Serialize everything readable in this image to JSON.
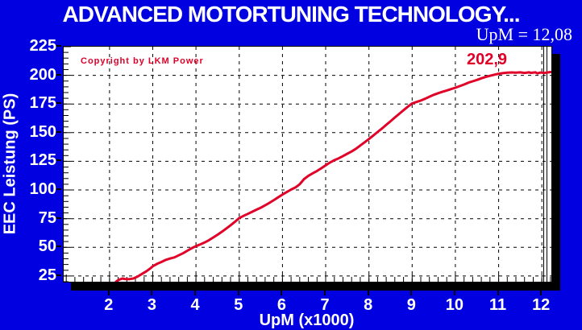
{
  "header": {
    "title": "ADVANCED MOTORTUNING TECHNOLOGY...",
    "rpm_readout": "UpM = 12,08"
  },
  "plot_annotations": {
    "copyright": "Copyright by LKM Power",
    "peak_value_label": "202,9"
  },
  "colors": {
    "background": "#0000e0",
    "text": "#ffffff",
    "accent_red": "#e00028",
    "grid": "#000000",
    "plot_background": "#ffffff"
  },
  "chart_data": {
    "type": "line",
    "title": "ADVANCED MOTORTUNING TECHNOLOGY...",
    "xlabel": "UpM (x1000)",
    "ylabel": "EEC Leistung (PS)",
    "xlim": [
      0.94,
      12.22
    ],
    "ylim": [
      20,
      225
    ],
    "xticks": [
      2,
      3,
      4,
      5,
      6,
      7,
      8,
      9,
      10,
      11,
      12
    ],
    "yticks": [
      225,
      200,
      175,
      150,
      125,
      100,
      75,
      50,
      25
    ],
    "x_minor_step": 0.2,
    "y_minor_step": 5,
    "grid": "dashed",
    "legend": "none",
    "cursor_upm": 12.08,
    "peak_ps": 202.9,
    "series": [
      {
        "name": "EEC Leistung (PS)",
        "color": "#e00028",
        "points": [
          [
            2.15,
            20
          ],
          [
            2.2,
            21.3
          ],
          [
            2.25,
            22.2
          ],
          [
            2.3,
            22.8
          ],
          [
            2.35,
            22.4
          ],
          [
            2.45,
            22.2
          ],
          [
            2.55,
            22.8
          ],
          [
            2.65,
            24.5
          ],
          [
            2.75,
            26.8
          ],
          [
            2.85,
            29
          ],
          [
            2.95,
            31.8
          ],
          [
            3.0,
            33.5
          ],
          [
            3.1,
            35.6
          ],
          [
            3.2,
            37.2
          ],
          [
            3.3,
            39
          ],
          [
            3.4,
            40.2
          ],
          [
            3.5,
            41.2
          ],
          [
            3.6,
            43
          ],
          [
            3.7,
            44.8
          ],
          [
            3.8,
            47
          ],
          [
            3.9,
            49.2
          ],
          [
            4.0,
            51
          ],
          [
            4.1,
            52.6
          ],
          [
            4.2,
            54.2
          ],
          [
            4.3,
            56.2
          ],
          [
            4.4,
            58.6
          ],
          [
            4.5,
            61
          ],
          [
            4.6,
            63.6
          ],
          [
            4.7,
            66.4
          ],
          [
            4.8,
            69.2
          ],
          [
            4.9,
            72.2
          ],
          [
            5.0,
            75.5
          ],
          [
            5.1,
            77.4
          ],
          [
            5.2,
            79.2
          ],
          [
            5.3,
            81
          ],
          [
            5.4,
            82.8
          ],
          [
            5.5,
            84.6
          ],
          [
            5.6,
            86.6
          ],
          [
            5.7,
            88.8
          ],
          [
            5.8,
            91.2
          ],
          [
            5.9,
            93.6
          ],
          [
            6.0,
            96
          ],
          [
            6.1,
            98.2
          ],
          [
            6.2,
            100.4
          ],
          [
            6.3,
            102.2
          ],
          [
            6.4,
            105
          ],
          [
            6.5,
            109.5
          ],
          [
            6.6,
            112.4
          ],
          [
            6.7,
            114.6
          ],
          [
            6.8,
            116.6
          ],
          [
            6.9,
            119
          ],
          [
            7.0,
            121.5
          ],
          [
            7.1,
            124
          ],
          [
            7.2,
            126
          ],
          [
            7.3,
            127.6
          ],
          [
            7.4,
            129.6
          ],
          [
            7.5,
            131.6
          ],
          [
            7.6,
            133.6
          ],
          [
            7.7,
            136
          ],
          [
            7.8,
            138.8
          ],
          [
            7.9,
            141.6
          ],
          [
            8.0,
            144.5
          ],
          [
            8.1,
            147.5
          ],
          [
            8.2,
            150.6
          ],
          [
            8.3,
            153.6
          ],
          [
            8.4,
            156.8
          ],
          [
            8.5,
            160
          ],
          [
            8.6,
            163.2
          ],
          [
            8.7,
            166.4
          ],
          [
            8.8,
            169.6
          ],
          [
            8.9,
            172.6
          ],
          [
            9.0,
            175.5
          ],
          [
            9.1,
            176.8
          ],
          [
            9.2,
            178
          ],
          [
            9.3,
            179.6
          ],
          [
            9.4,
            181.4
          ],
          [
            9.5,
            183
          ],
          [
            9.6,
            184.4
          ],
          [
            9.7,
            185.6
          ],
          [
            9.8,
            186.8
          ],
          [
            9.9,
            188
          ],
          [
            10.0,
            189.2
          ],
          [
            10.1,
            190.6
          ],
          [
            10.2,
            192
          ],
          [
            10.3,
            193.6
          ],
          [
            10.4,
            194.8
          ],
          [
            10.5,
            196
          ],
          [
            10.6,
            197.4
          ],
          [
            10.7,
            198.6
          ],
          [
            10.8,
            199.6
          ],
          [
            10.9,
            200.6
          ],
          [
            11.0,
            201.4
          ],
          [
            11.1,
            201.9
          ],
          [
            11.2,
            202.3
          ],
          [
            11.3,
            202.5
          ],
          [
            11.4,
            202.3
          ],
          [
            11.5,
            202.6
          ],
          [
            11.6,
            202.1
          ],
          [
            11.7,
            202.6
          ],
          [
            11.75,
            202.2
          ],
          [
            11.85,
            202.6
          ],
          [
            11.9,
            201.7
          ],
          [
            11.95,
            202.3
          ],
          [
            12.0,
            202.4
          ],
          [
            12.05,
            202.0
          ],
          [
            12.1,
            202.4
          ],
          [
            12.15,
            202.6
          ],
          [
            12.2,
            202.9
          ]
        ]
      }
    ]
  }
}
